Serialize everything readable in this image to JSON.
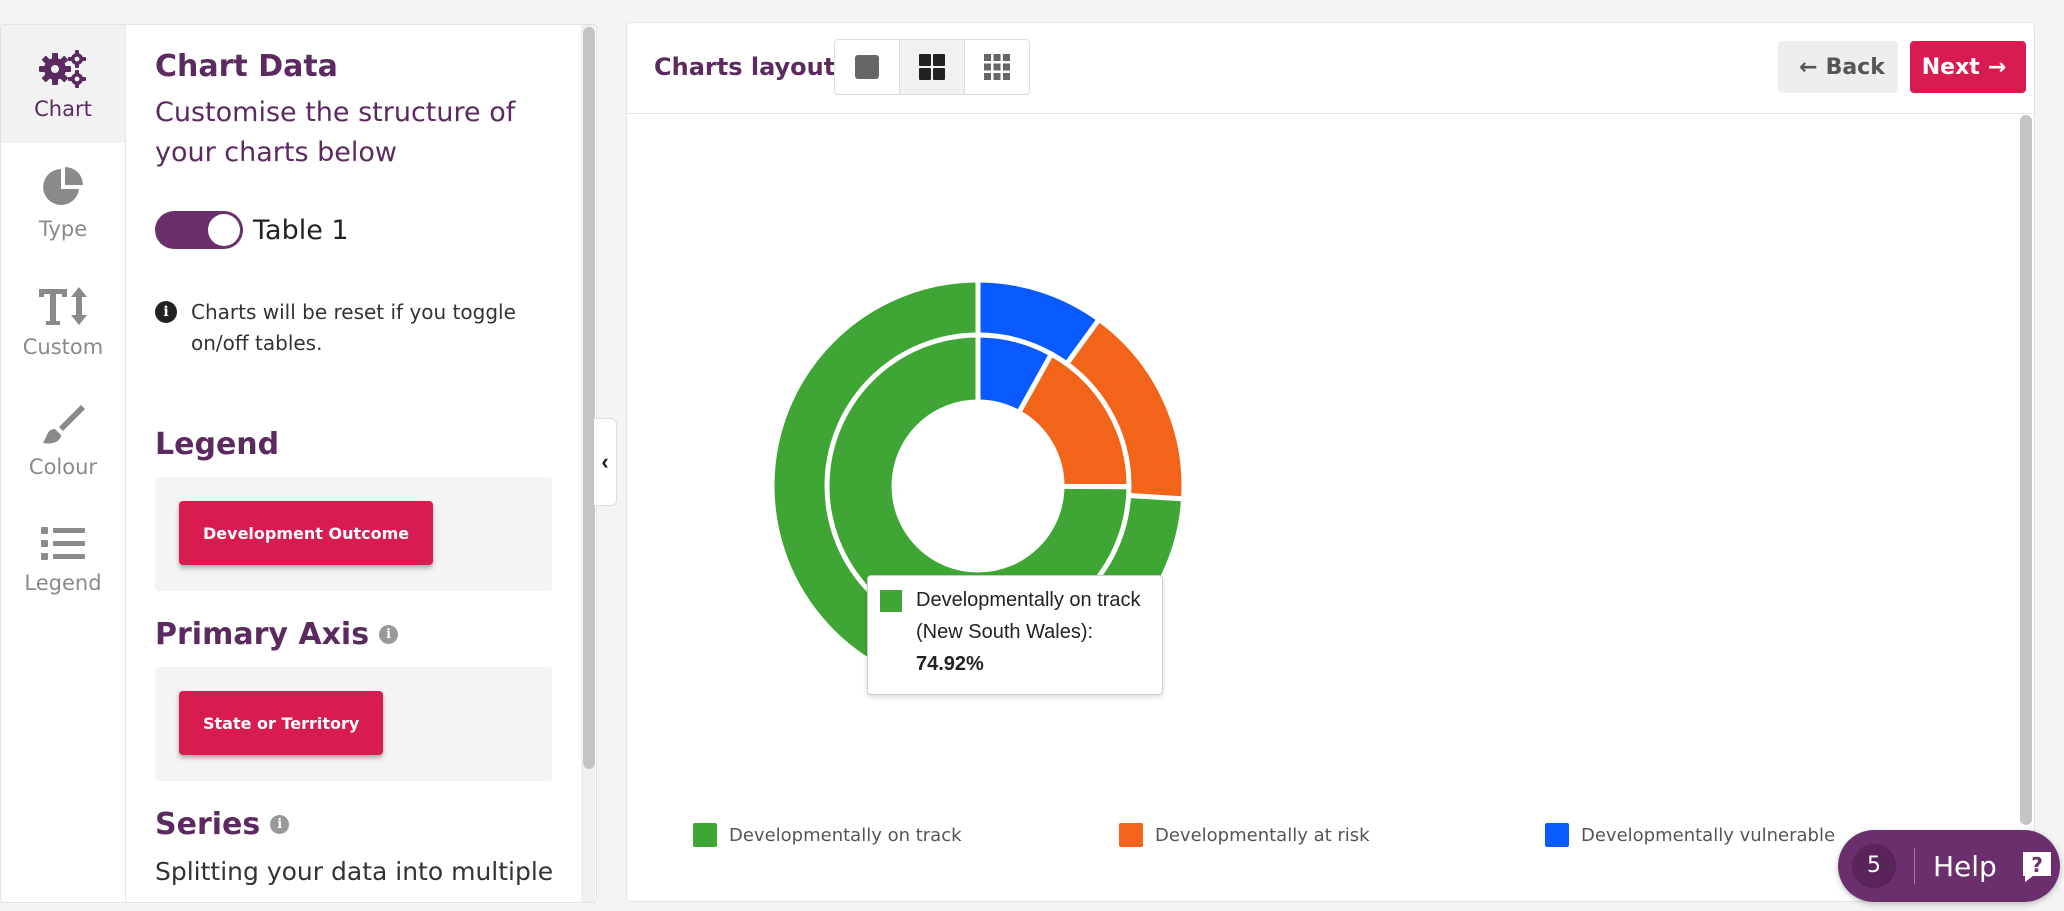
{
  "rail": {
    "items": [
      {
        "label": "Chart",
        "icon": "gears-icon",
        "active": true
      },
      {
        "label": "Type",
        "icon": "pie-icon"
      },
      {
        "label": "Custom",
        "icon": "text-size-icon"
      },
      {
        "label": "Colour",
        "icon": "brush-icon"
      },
      {
        "label": "Legend",
        "icon": "list-icon"
      }
    ]
  },
  "panel": {
    "title": "Chart Data",
    "subtitle": "Customise the structure of your charts below",
    "table_toggle_label": "Table 1",
    "info_note": "Charts will be reset if you toggle on/off tables.",
    "legend_heading": "Legend",
    "legend_chip": "Development Outcome",
    "primary_axis_heading": "Primary Axis",
    "primary_axis_chip": "State or Territory",
    "series_heading": "Series",
    "series_text": "Splitting your data into multiple"
  },
  "topbar": {
    "layout_label": "Charts layout:",
    "back_label": "Back",
    "next_label": "Next"
  },
  "tooltip": {
    "line1": "Developmentally on track",
    "line2": "(New South Wales):",
    "value": "74.92%"
  },
  "help": {
    "count": "5",
    "label": "Help"
  },
  "colors": {
    "on_track": "#3fa535",
    "at_risk": "#f26419",
    "vulnerable": "#0a5bff",
    "brand": "#5b2a5f",
    "accent": "#d81b50"
  },
  "chart_data": {
    "type": "pie",
    "subtype": "multi-ring donut",
    "rings": [
      {
        "name": "Outer ring",
        "values": [
          74,
          16,
          10
        ]
      },
      {
        "name": "New South Wales",
        "values": [
          74.92,
          17,
          8.08
        ]
      }
    ],
    "categories": [
      "Developmentally on track",
      "Developmentally at risk",
      "Developmentally vulnerable"
    ],
    "legend": [
      "Developmentally on track",
      "Developmentally at risk",
      "Developmentally vulnerable"
    ],
    "legend_position": "bottom"
  }
}
